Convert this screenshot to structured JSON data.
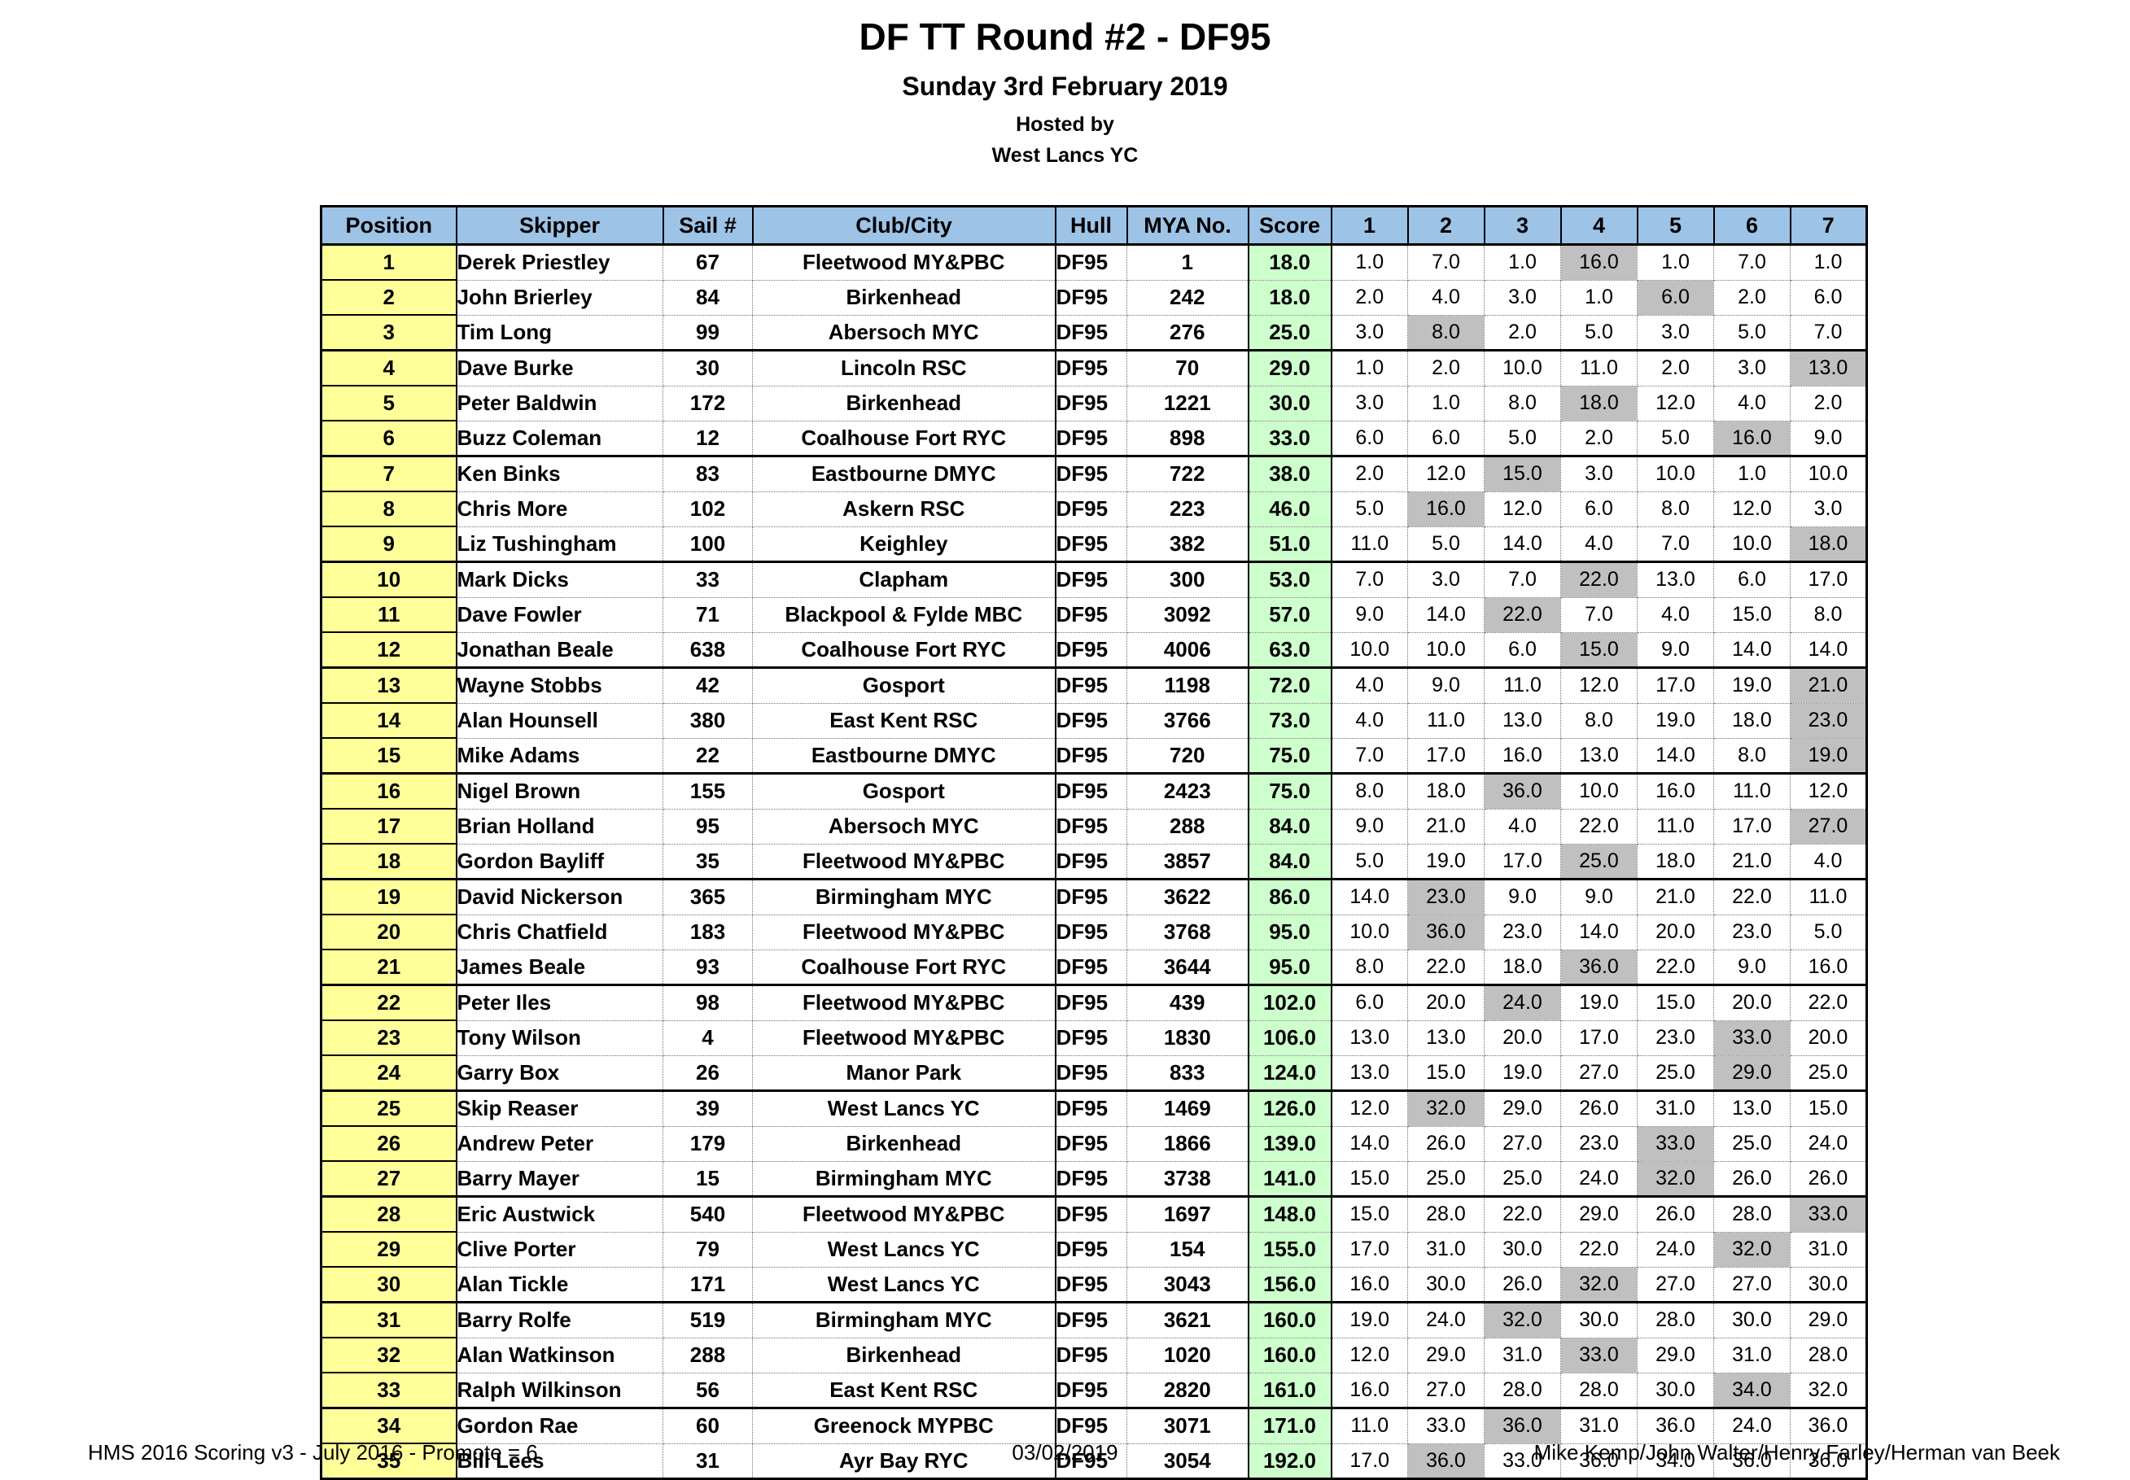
{
  "title": "DF TT Round #2 - DF95",
  "subtitle": "Sunday 3rd February 2019",
  "hosted_by_label": "Hosted by",
  "host_club": "West Lancs YC",
  "colors": {
    "header_bg": "#9DC3E6",
    "position_bg": "#FFFF99",
    "score_bg": "#CCFFCC",
    "discard_bg": "#C0C0C0"
  },
  "table": {
    "columns": [
      "Position",
      "Skipper",
      "Sail #",
      "Club/City",
      "Hull",
      "MYA No.",
      "Score",
      "1",
      "2",
      "3",
      "4",
      "5",
      "6",
      "7"
    ],
    "rows": [
      {
        "position": "1",
        "skipper": "Derek Priestley",
        "sail": "67",
        "club": "Fleetwood MY&PBC",
        "hull": "DF95",
        "mya": "1",
        "score": "18.0",
        "races": [
          "1.0",
          "7.0",
          "1.0",
          "16.0",
          "1.0",
          "7.0",
          "1.0"
        ],
        "discard_index": 3
      },
      {
        "position": "2",
        "skipper": "John Brierley",
        "sail": "84",
        "club": "Birkenhead",
        "hull": "DF95",
        "mya": "242",
        "score": "18.0",
        "races": [
          "2.0",
          "4.0",
          "3.0",
          "1.0",
          "6.0",
          "2.0",
          "6.0"
        ],
        "discard_index": 4
      },
      {
        "position": "3",
        "skipper": "Tim Long",
        "sail": "99",
        "club": "Abersoch MYC",
        "hull": "DF95",
        "mya": "276",
        "score": "25.0",
        "races": [
          "3.0",
          "8.0",
          "2.0",
          "5.0",
          "3.0",
          "5.0",
          "7.0"
        ],
        "discard_index": 1
      },
      {
        "position": "4",
        "skipper": "Dave Burke",
        "sail": "30",
        "club": "Lincoln RSC",
        "hull": "DF95",
        "mya": "70",
        "score": "29.0",
        "races": [
          "1.0",
          "2.0",
          "10.0",
          "11.0",
          "2.0",
          "3.0",
          "13.0"
        ],
        "discard_index": 6
      },
      {
        "position": "5",
        "skipper": "Peter Baldwin",
        "sail": "172",
        "club": "Birkenhead",
        "hull": "DF95",
        "mya": "1221",
        "score": "30.0",
        "races": [
          "3.0",
          "1.0",
          "8.0",
          "18.0",
          "12.0",
          "4.0",
          "2.0"
        ],
        "discard_index": 3
      },
      {
        "position": "6",
        "skipper": "Buzz Coleman",
        "sail": "12",
        "club": "Coalhouse Fort RYC",
        "hull": "DF95",
        "mya": "898",
        "score": "33.0",
        "races": [
          "6.0",
          "6.0",
          "5.0",
          "2.0",
          "5.0",
          "16.0",
          "9.0"
        ],
        "discard_index": 5
      },
      {
        "position": "7",
        "skipper": "Ken Binks",
        "sail": "83",
        "club": "Eastbourne DMYC",
        "hull": "DF95",
        "mya": "722",
        "score": "38.0",
        "races": [
          "2.0",
          "12.0",
          "15.0",
          "3.0",
          "10.0",
          "1.0",
          "10.0"
        ],
        "discard_index": 2
      },
      {
        "position": "8",
        "skipper": "Chris More",
        "sail": "102",
        "club": "Askern RSC",
        "hull": "DF95",
        "mya": "223",
        "score": "46.0",
        "races": [
          "5.0",
          "16.0",
          "12.0",
          "6.0",
          "8.0",
          "12.0",
          "3.0"
        ],
        "discard_index": 1
      },
      {
        "position": "9",
        "skipper": "Liz Tushingham",
        "sail": "100",
        "club": "Keighley",
        "hull": "DF95",
        "mya": "382",
        "score": "51.0",
        "races": [
          "11.0",
          "5.0",
          "14.0",
          "4.0",
          "7.0",
          "10.0",
          "18.0"
        ],
        "discard_index": 6
      },
      {
        "position": "10",
        "skipper": "Mark Dicks",
        "sail": "33",
        "club": "Clapham",
        "hull": "DF95",
        "mya": "300",
        "score": "53.0",
        "races": [
          "7.0",
          "3.0",
          "7.0",
          "22.0",
          "13.0",
          "6.0",
          "17.0"
        ],
        "discard_index": 3
      },
      {
        "position": "11",
        "skipper": "Dave Fowler",
        "sail": "71",
        "club": "Blackpool & Fylde MBC",
        "hull": "DF95",
        "mya": "3092",
        "score": "57.0",
        "races": [
          "9.0",
          "14.0",
          "22.0",
          "7.0",
          "4.0",
          "15.0",
          "8.0"
        ],
        "discard_index": 2
      },
      {
        "position": "12",
        "skipper": "Jonathan Beale",
        "sail": "638",
        "club": "Coalhouse Fort RYC",
        "hull": "DF95",
        "mya": "4006",
        "score": "63.0",
        "races": [
          "10.0",
          "10.0",
          "6.0",
          "15.0",
          "9.0",
          "14.0",
          "14.0"
        ],
        "discard_index": 3
      },
      {
        "position": "13",
        "skipper": "Wayne Stobbs",
        "sail": "42",
        "club": "Gosport",
        "hull": "DF95",
        "mya": "1198",
        "score": "72.0",
        "races": [
          "4.0",
          "9.0",
          "11.0",
          "12.0",
          "17.0",
          "19.0",
          "21.0"
        ],
        "discard_index": 6
      },
      {
        "position": "14",
        "skipper": "Alan Hounsell",
        "sail": "380",
        "club": "East Kent RSC",
        "hull": "DF95",
        "mya": "3766",
        "score": "73.0",
        "races": [
          "4.0",
          "11.0",
          "13.0",
          "8.0",
          "19.0",
          "18.0",
          "23.0"
        ],
        "discard_index": 6
      },
      {
        "position": "15",
        "skipper": "Mike Adams",
        "sail": "22",
        "club": "Eastbourne DMYC",
        "hull": "DF95",
        "mya": "720",
        "score": "75.0",
        "races": [
          "7.0",
          "17.0",
          "16.0",
          "13.0",
          "14.0",
          "8.0",
          "19.0"
        ],
        "discard_index": 6
      },
      {
        "position": "16",
        "skipper": "Nigel Brown",
        "sail": "155",
        "club": "Gosport",
        "hull": "DF95",
        "mya": "2423",
        "score": "75.0",
        "races": [
          "8.0",
          "18.0",
          "36.0",
          "10.0",
          "16.0",
          "11.0",
          "12.0"
        ],
        "discard_index": 2
      },
      {
        "position": "17",
        "skipper": "Brian Holland",
        "sail": "95",
        "club": "Abersoch MYC",
        "hull": "DF95",
        "mya": "288",
        "score": "84.0",
        "races": [
          "9.0",
          "21.0",
          "4.0",
          "22.0",
          "11.0",
          "17.0",
          "27.0"
        ],
        "discard_index": 6
      },
      {
        "position": "18",
        "skipper": "Gordon Bayliff",
        "sail": "35",
        "club": "Fleetwood MY&PBC",
        "hull": "DF95",
        "mya": "3857",
        "score": "84.0",
        "races": [
          "5.0",
          "19.0",
          "17.0",
          "25.0",
          "18.0",
          "21.0",
          "4.0"
        ],
        "discard_index": 3
      },
      {
        "position": "19",
        "skipper": "David Nickerson",
        "sail": "365",
        "club": "Birmingham MYC",
        "hull": "DF95",
        "mya": "3622",
        "score": "86.0",
        "races": [
          "14.0",
          "23.0",
          "9.0",
          "9.0",
          "21.0",
          "22.0",
          "11.0"
        ],
        "discard_index": 1
      },
      {
        "position": "20",
        "skipper": "Chris Chatfield",
        "sail": "183",
        "club": "Fleetwood MY&PBC",
        "hull": "DF95",
        "mya": "3768",
        "score": "95.0",
        "races": [
          "10.0",
          "36.0",
          "23.0",
          "14.0",
          "20.0",
          "23.0",
          "5.0"
        ],
        "discard_index": 1
      },
      {
        "position": "21",
        "skipper": "James Beale",
        "sail": "93",
        "club": "Coalhouse Fort RYC",
        "hull": "DF95",
        "mya": "3644",
        "score": "95.0",
        "races": [
          "8.0",
          "22.0",
          "18.0",
          "36.0",
          "22.0",
          "9.0",
          "16.0"
        ],
        "discard_index": 3
      },
      {
        "position": "22",
        "skipper": "Peter Iles",
        "sail": "98",
        "club": "Fleetwood MY&PBC",
        "hull": "DF95",
        "mya": "439",
        "score": "102.0",
        "races": [
          "6.0",
          "20.0",
          "24.0",
          "19.0",
          "15.0",
          "20.0",
          "22.0"
        ],
        "discard_index": 2
      },
      {
        "position": "23",
        "skipper": "Tony Wilson",
        "sail": "4",
        "club": "Fleetwood MY&PBC",
        "hull": "DF95",
        "mya": "1830",
        "score": "106.0",
        "races": [
          "13.0",
          "13.0",
          "20.0",
          "17.0",
          "23.0",
          "33.0",
          "20.0"
        ],
        "discard_index": 5
      },
      {
        "position": "24",
        "skipper": "Garry Box",
        "sail": "26",
        "club": "Manor Park",
        "hull": "DF95",
        "mya": "833",
        "score": "124.0",
        "races": [
          "13.0",
          "15.0",
          "19.0",
          "27.0",
          "25.0",
          "29.0",
          "25.0"
        ],
        "discard_index": 5
      },
      {
        "position": "25",
        "skipper": "Skip Reaser",
        "sail": "39",
        "club": "West Lancs YC",
        "hull": "DF95",
        "mya": "1469",
        "score": "126.0",
        "races": [
          "12.0",
          "32.0",
          "29.0",
          "26.0",
          "31.0",
          "13.0",
          "15.0"
        ],
        "discard_index": 1
      },
      {
        "position": "26",
        "skipper": "Andrew Peter",
        "sail": "179",
        "club": "Birkenhead",
        "hull": "DF95",
        "mya": "1866",
        "score": "139.0",
        "races": [
          "14.0",
          "26.0",
          "27.0",
          "23.0",
          "33.0",
          "25.0",
          "24.0"
        ],
        "discard_index": 4
      },
      {
        "position": "27",
        "skipper": "Barry Mayer",
        "sail": "15",
        "club": "Birmingham MYC",
        "hull": "DF95",
        "mya": "3738",
        "score": "141.0",
        "races": [
          "15.0",
          "25.0",
          "25.0",
          "24.0",
          "32.0",
          "26.0",
          "26.0"
        ],
        "discard_index": 4
      },
      {
        "position": "28",
        "skipper": "Eric Austwick",
        "sail": "540",
        "club": "Fleetwood MY&PBC",
        "hull": "DF95",
        "mya": "1697",
        "score": "148.0",
        "races": [
          "15.0",
          "28.0",
          "22.0",
          "29.0",
          "26.0",
          "28.0",
          "33.0"
        ],
        "discard_index": 6
      },
      {
        "position": "29",
        "skipper": "Clive Porter",
        "sail": "79",
        "club": "West Lancs YC",
        "hull": "DF95",
        "mya": "154",
        "score": "155.0",
        "races": [
          "17.0",
          "31.0",
          "30.0",
          "22.0",
          "24.0",
          "32.0",
          "31.0"
        ],
        "discard_index": 5
      },
      {
        "position": "30",
        "skipper": "Alan Tickle",
        "sail": "171",
        "club": "West Lancs YC",
        "hull": "DF95",
        "mya": "3043",
        "score": "156.0",
        "races": [
          "16.0",
          "30.0",
          "26.0",
          "32.0",
          "27.0",
          "27.0",
          "30.0"
        ],
        "discard_index": 3
      },
      {
        "position": "31",
        "skipper": "Barry Rolfe",
        "sail": "519",
        "club": "Birmingham MYC",
        "hull": "DF95",
        "mya": "3621",
        "score": "160.0",
        "races": [
          "19.0",
          "24.0",
          "32.0",
          "30.0",
          "28.0",
          "30.0",
          "29.0"
        ],
        "discard_index": 2
      },
      {
        "position": "32",
        "skipper": "Alan Watkinson",
        "sail": "288",
        "club": "Birkenhead",
        "hull": "DF95",
        "mya": "1020",
        "score": "160.0",
        "races": [
          "12.0",
          "29.0",
          "31.0",
          "33.0",
          "29.0",
          "31.0",
          "28.0"
        ],
        "discard_index": 3
      },
      {
        "position": "33",
        "skipper": "Ralph Wilkinson",
        "sail": "56",
        "club": "East Kent RSC",
        "hull": "DF95",
        "mya": "2820",
        "score": "161.0",
        "races": [
          "16.0",
          "27.0",
          "28.0",
          "28.0",
          "30.0",
          "34.0",
          "32.0"
        ],
        "discard_index": 5
      },
      {
        "position": "34",
        "skipper": "Gordon Rae",
        "sail": "60",
        "club": "Greenock MYPBC",
        "hull": "DF95",
        "mya": "3071",
        "score": "171.0",
        "races": [
          "11.0",
          "33.0",
          "36.0",
          "31.0",
          "36.0",
          "24.0",
          "36.0"
        ],
        "discard_index": 2
      },
      {
        "position": "35",
        "skipper": "Bill Lees",
        "sail": "31",
        "club": "Ayr Bay RYC",
        "hull": "DF95",
        "mya": "3054",
        "score": "192.0",
        "races": [
          "17.0",
          "36.0",
          "33.0",
          "36.0",
          "34.0",
          "36.0",
          "36.0"
        ],
        "discard_index": 1
      }
    ]
  },
  "footer": {
    "left": "HMS 2016 Scoring v3 - July 2016 - Promote = 6",
    "center": "03/02/2019",
    "right": "Mike Kemp/John Walter/Henry Farley/Herman van Beek"
  }
}
